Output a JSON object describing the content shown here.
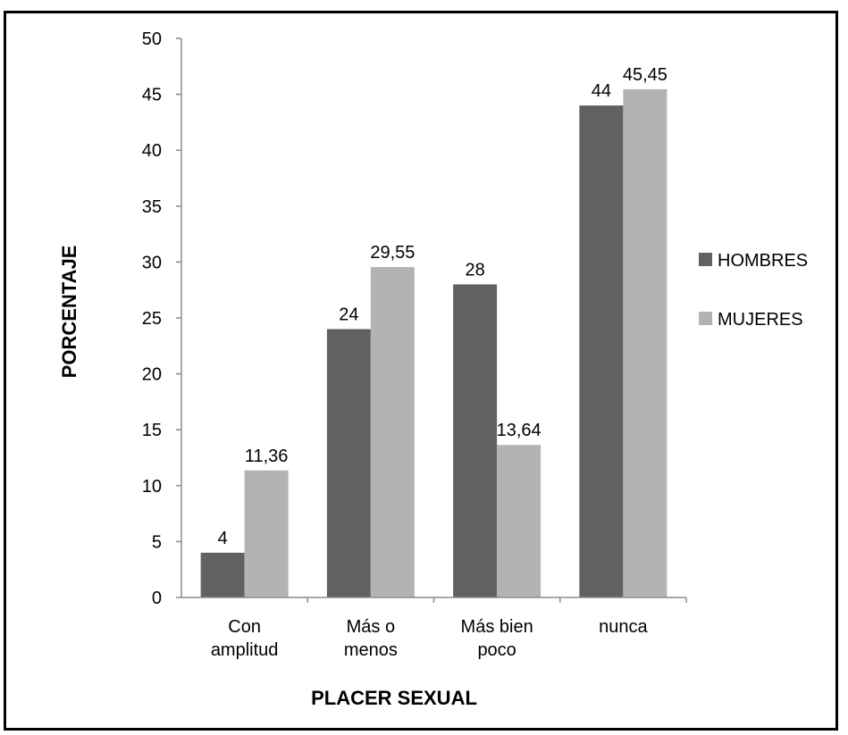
{
  "chart_data": {
    "type": "bar",
    "title": "",
    "xlabel": "PLACER SEXUAL",
    "ylabel": "PORCENTAJE",
    "categories": [
      [
        "Con",
        "amplitud"
      ],
      [
        "Más o",
        "menos"
      ],
      [
        "Más bien",
        "poco"
      ],
      [
        "nunca"
      ]
    ],
    "series": [
      {
        "name": "HOMBRES",
        "color": "#616161",
        "values": [
          4,
          24,
          28,
          44
        ],
        "labels": [
          "4",
          "24",
          "28",
          "44"
        ]
      },
      {
        "name": "MUJERES",
        "color": "#b3b3b3",
        "values": [
          11.36,
          29.55,
          13.64,
          45.45
        ],
        "labels": [
          "11,36",
          "29,55",
          "13,64",
          "45,45"
        ]
      }
    ],
    "ylim": [
      0,
      50
    ],
    "yticks": [
      0,
      5,
      10,
      15,
      20,
      25,
      30,
      35,
      40,
      45,
      50
    ],
    "grid": false,
    "legend_position": "right"
  }
}
